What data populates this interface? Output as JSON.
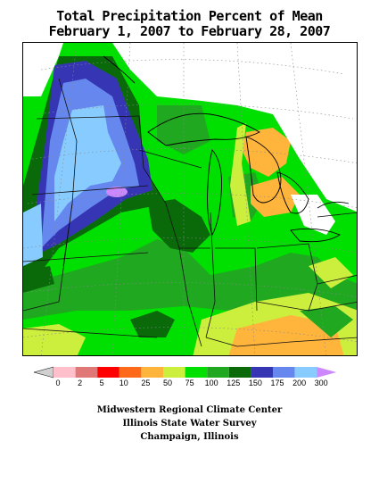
{
  "title": {
    "line1": "Total Precipitation Percent of Mean",
    "line2": "February 1, 2007 to February 28, 2007"
  },
  "legend": {
    "bins": [
      {
        "color": "#d0d0d0",
        "label": "0"
      },
      {
        "color": "#ffc0cb",
        "label": "2"
      },
      {
        "color": "#e07878",
        "label": "5"
      },
      {
        "color": "#ff0000",
        "label": "10"
      },
      {
        "color": "#ff6a1a",
        "label": "25"
      },
      {
        "color": "#ffb43c",
        "label": "50"
      },
      {
        "color": "#ccee3c",
        "label": "75"
      },
      {
        "color": "#00e000",
        "label": "100"
      },
      {
        "color": "#20a820",
        "label": "125"
      },
      {
        "color": "#0a6a0a",
        "label": "150"
      },
      {
        "color": "#3636b4",
        "label": "175"
      },
      {
        "color": "#6688ee",
        "label": "200"
      },
      {
        "color": "#88ccff",
        "label": "300"
      },
      {
        "color": "#cc88ff",
        "label": ""
      }
    ]
  },
  "credits": {
    "line1": "Midwestern Regional Climate Center",
    "line2": "Illinois State Water Survey",
    "line3": "Champaign, Illinois"
  }
}
